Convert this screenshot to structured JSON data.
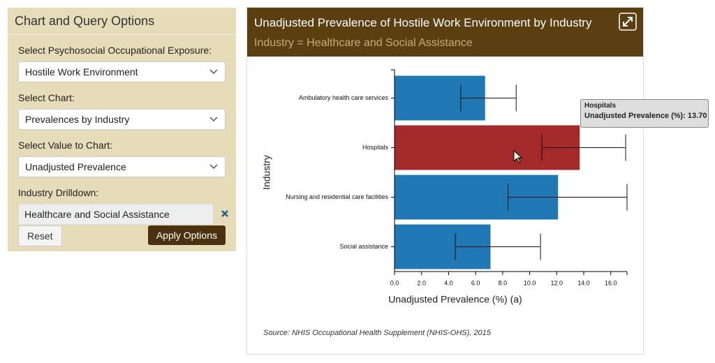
{
  "sidebar": {
    "title": "Chart and Query Options",
    "fields": [
      {
        "label": "Select Psychosocial Occupational Exposure:",
        "value": "Hostile Work Environment"
      },
      {
        "label": "Select Chart:",
        "value": "Prevalences by Industry"
      },
      {
        "label": "Select Value to Chart:",
        "value": "Unadjusted Prevalence"
      }
    ],
    "drilldown": {
      "label": "Industry Drilldown:",
      "value": "Healthcare and Social Assistance"
    },
    "buttons": {
      "reset": "Reset",
      "apply": "Apply Options"
    }
  },
  "chart_data": {
    "type": "bar",
    "orientation": "horizontal",
    "title": "Unadjusted Prevalence of Hostile Work Environment by Industry",
    "subtitle": "Industry = Healthcare and Social Assistance",
    "source": "Source: NHIS Occupational Health Supplement (NHIS-OHS), 2015",
    "x_label": "Unadjusted Prevalence (%) (a)",
    "y_label": "Industry",
    "categories": [
      "Ambulatory health care services",
      "Hospitals",
      "Nursing and residential care facilities",
      "Social assistance"
    ],
    "values": [
      6.7,
      13.7,
      12.1,
      7.1
    ],
    "error_low": [
      4.9,
      10.9,
      8.4,
      4.5
    ],
    "error_high": [
      9.0,
      17.1,
      17.2,
      10.8
    ],
    "colors": [
      "#1f77b4",
      "#a4292a",
      "#1f77b4",
      "#1f77b4"
    ],
    "xlim": [
      0,
      17.2
    ],
    "xticks": [
      {
        "value": 0,
        "label": "0.0"
      },
      {
        "value": 2,
        "label": "2.0"
      },
      {
        "value": 4,
        "label": "4.0"
      },
      {
        "value": 6,
        "label": "6.0"
      },
      {
        "value": 8,
        "label": "8.0"
      },
      {
        "value": 10,
        "label": "10.0"
      },
      {
        "value": 12,
        "label": "12.0"
      },
      {
        "value": 14,
        "label": "14.0"
      },
      {
        "value": 16,
        "label": "16.0"
      }
    ],
    "tooltip": {
      "title": "Hospitals",
      "text": "Unadjusted Prevalence (%): 13.70"
    }
  }
}
